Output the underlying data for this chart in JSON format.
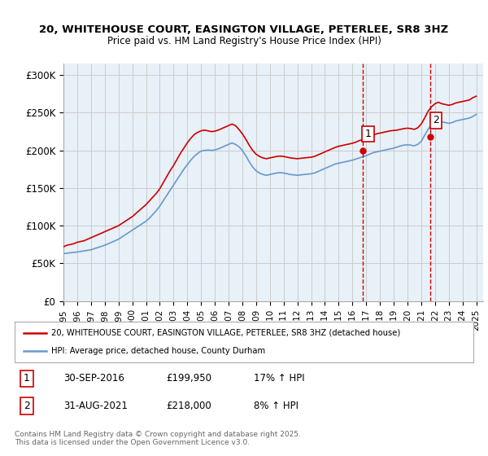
{
  "title_line1": "20, WHITEHOUSE COURT, EASINGTON VILLAGE, PETERLEE, SR8 3HZ",
  "title_line2": "Price paid vs. HM Land Registry's House Price Index (HPI)",
  "ylabel_ticks": [
    "£0",
    "£50K",
    "£100K",
    "£150K",
    "£200K",
    "£250K",
    "£300K"
  ],
  "ytick_values": [
    0,
    50000,
    100000,
    150000,
    200000,
    250000,
    300000
  ],
  "ylim": [
    0,
    315000
  ],
  "xlim_start": 1995.0,
  "xlim_end": 2025.5,
  "xticks": [
    1995,
    1996,
    1997,
    1998,
    1999,
    2000,
    2001,
    2002,
    2003,
    2004,
    2005,
    2006,
    2007,
    2008,
    2009,
    2010,
    2011,
    2012,
    2013,
    2014,
    2015,
    2016,
    2017,
    2018,
    2019,
    2020,
    2021,
    2022,
    2023,
    2024,
    2025
  ],
  "red_line_color": "#cc0000",
  "blue_line_color": "#6699cc",
  "grid_color": "#cccccc",
  "bg_color": "#e8f0f8",
  "sale1_x": 2016.75,
  "sale1_y": 199950,
  "sale1_label": "1",
  "sale2_x": 2021.67,
  "sale2_y": 218000,
  "sale2_label": "2",
  "legend_line1": "20, WHITEHOUSE COURT, EASINGTON VILLAGE, PETERLEE, SR8 3HZ (detached house)",
  "legend_line2": "HPI: Average price, detached house, County Durham",
  "annotation1": "1    30-SEP-2016    £199,950    17% ↑ HPI",
  "annotation2": "2    31-AUG-2021    £218,000      8% ↑ HPI",
  "footnote": "Contains HM Land Registry data © Crown copyright and database right 2025.\nThis data is licensed under the Open Government Licence v3.0.",
  "hpi_data_x": [
    1995.0,
    1995.25,
    1995.5,
    1995.75,
    1996.0,
    1996.25,
    1996.5,
    1996.75,
    1997.0,
    1997.25,
    1997.5,
    1997.75,
    1998.0,
    1998.25,
    1998.5,
    1998.75,
    1999.0,
    1999.25,
    1999.5,
    1999.75,
    2000.0,
    2000.25,
    2000.5,
    2000.75,
    2001.0,
    2001.25,
    2001.5,
    2001.75,
    2002.0,
    2002.25,
    2002.5,
    2002.75,
    2003.0,
    2003.25,
    2003.5,
    2003.75,
    2004.0,
    2004.25,
    2004.5,
    2004.75,
    2005.0,
    2005.25,
    2005.5,
    2005.75,
    2006.0,
    2006.25,
    2006.5,
    2006.75,
    2007.0,
    2007.25,
    2007.5,
    2007.75,
    2008.0,
    2008.25,
    2008.5,
    2008.75,
    2009.0,
    2009.25,
    2009.5,
    2009.75,
    2010.0,
    2010.25,
    2010.5,
    2010.75,
    2011.0,
    2011.25,
    2011.5,
    2011.75,
    2012.0,
    2012.25,
    2012.5,
    2012.75,
    2013.0,
    2013.25,
    2013.5,
    2013.75,
    2014.0,
    2014.25,
    2014.5,
    2014.75,
    2015.0,
    2015.25,
    2015.5,
    2015.75,
    2016.0,
    2016.25,
    2016.5,
    2016.75,
    2017.0,
    2017.25,
    2017.5,
    2017.75,
    2018.0,
    2018.25,
    2018.5,
    2018.75,
    2019.0,
    2019.25,
    2019.5,
    2019.75,
    2020.0,
    2020.25,
    2020.5,
    2020.75,
    2021.0,
    2021.25,
    2021.5,
    2021.75,
    2022.0,
    2022.25,
    2022.5,
    2022.75,
    2023.0,
    2023.25,
    2023.5,
    2023.75,
    2024.0,
    2024.25,
    2024.5,
    2024.75,
    2025.0
  ],
  "hpi_data_y": [
    63000,
    63500,
    64000,
    64500,
    65000,
    65800,
    66500,
    67200,
    68000,
    69500,
    71000,
    72500,
    74000,
    76000,
    78000,
    80000,
    82000,
    85000,
    88000,
    91000,
    94000,
    97000,
    100000,
    103000,
    106000,
    110000,
    115000,
    120000,
    126000,
    133000,
    140000,
    147000,
    154000,
    161000,
    168000,
    175000,
    181000,
    187000,
    192000,
    196000,
    199000,
    200000,
    200500,
    200000,
    200500,
    202000,
    204000,
    206000,
    208000,
    210000,
    208000,
    205000,
    200000,
    193000,
    185000,
    178000,
    173000,
    170000,
    168000,
    167000,
    168000,
    169000,
    170000,
    170500,
    170000,
    169000,
    168000,
    167500,
    167000,
    167500,
    168000,
    168500,
    169000,
    170000,
    172000,
    174000,
    176000,
    178000,
    180000,
    182000,
    183000,
    184000,
    185000,
    186000,
    187000,
    188500,
    190000,
    191500,
    193000,
    195000,
    197000,
    198000,
    199000,
    200000,
    201000,
    202000,
    203000,
    204500,
    206000,
    207000,
    207500,
    207000,
    206000,
    208000,
    212000,
    220000,
    228000,
    234000,
    238000,
    240000,
    238000,
    237000,
    236000,
    237000,
    239000,
    240000,
    241000,
    242000,
    243000,
    245000,
    248000
  ],
  "price_data_x": [
    1995.0,
    1995.25,
    1995.5,
    1995.75,
    1996.0,
    1996.25,
    1996.5,
    1996.75,
    1997.0,
    1997.25,
    1997.5,
    1997.75,
    1998.0,
    1998.25,
    1998.5,
    1998.75,
    1999.0,
    1999.25,
    1999.5,
    1999.75,
    2000.0,
    2000.25,
    2000.5,
    2000.75,
    2001.0,
    2001.25,
    2001.5,
    2001.75,
    2002.0,
    2002.25,
    2002.5,
    2002.75,
    2003.0,
    2003.25,
    2003.5,
    2003.75,
    2004.0,
    2004.25,
    2004.5,
    2004.75,
    2005.0,
    2005.25,
    2005.5,
    2005.75,
    2006.0,
    2006.25,
    2006.5,
    2006.75,
    2007.0,
    2007.25,
    2007.5,
    2007.75,
    2008.0,
    2008.25,
    2008.5,
    2008.75,
    2009.0,
    2009.25,
    2009.5,
    2009.75,
    2010.0,
    2010.25,
    2010.5,
    2010.75,
    2011.0,
    2011.25,
    2011.5,
    2011.75,
    2012.0,
    2012.25,
    2012.5,
    2012.75,
    2013.0,
    2013.25,
    2013.5,
    2013.75,
    2014.0,
    2014.25,
    2014.5,
    2014.75,
    2015.0,
    2015.25,
    2015.5,
    2015.75,
    2016.0,
    2016.25,
    2016.5,
    2016.75,
    2017.0,
    2017.25,
    2017.5,
    2017.75,
    2018.0,
    2018.25,
    2018.5,
    2018.75,
    2019.0,
    2019.25,
    2019.5,
    2019.75,
    2020.0,
    2020.25,
    2020.5,
    2020.75,
    2021.0,
    2021.25,
    2021.5,
    2021.75,
    2022.0,
    2022.25,
    2022.5,
    2022.75,
    2023.0,
    2023.25,
    2023.5,
    2023.75,
    2024.0,
    2024.25,
    2024.5,
    2024.75,
    2025.0
  ],
  "price_data_y": [
    72000,
    74000,
    75000,
    76000,
    78000,
    79000,
    80000,
    82000,
    84000,
    86000,
    88000,
    90000,
    92000,
    94000,
    96000,
    98000,
    100000,
    103000,
    106000,
    109000,
    112000,
    116000,
    120000,
    124000,
    128000,
    133000,
    138000,
    143000,
    149000,
    157000,
    165000,
    173000,
    180000,
    188000,
    196000,
    203000,
    210000,
    216000,
    221000,
    224000,
    226000,
    227000,
    226000,
    225000,
    225500,
    227000,
    229000,
    231000,
    233000,
    235000,
    233000,
    228000,
    222000,
    215000,
    207000,
    200000,
    195000,
    192000,
    190000,
    189000,
    190000,
    191000,
    192000,
    192500,
    192000,
    191000,
    190000,
    189500,
    189000,
    189500,
    190000,
    190500,
    191000,
    192000,
    194000,
    196000,
    198000,
    200000,
    202000,
    204000,
    205500,
    206500,
    207500,
    208500,
    209500,
    211000,
    213000,
    214500,
    216000,
    218000,
    220500,
    222000,
    223000,
    224000,
    225000,
    226000,
    226500,
    227000,
    228000,
    229000,
    229500,
    229000,
    228000,
    230000,
    235000,
    243000,
    252000,
    258000,
    262000,
    264000,
    262000,
    261000,
    260000,
    261000,
    263000,
    264000,
    265000,
    266000,
    267000,
    270000,
    272000
  ]
}
